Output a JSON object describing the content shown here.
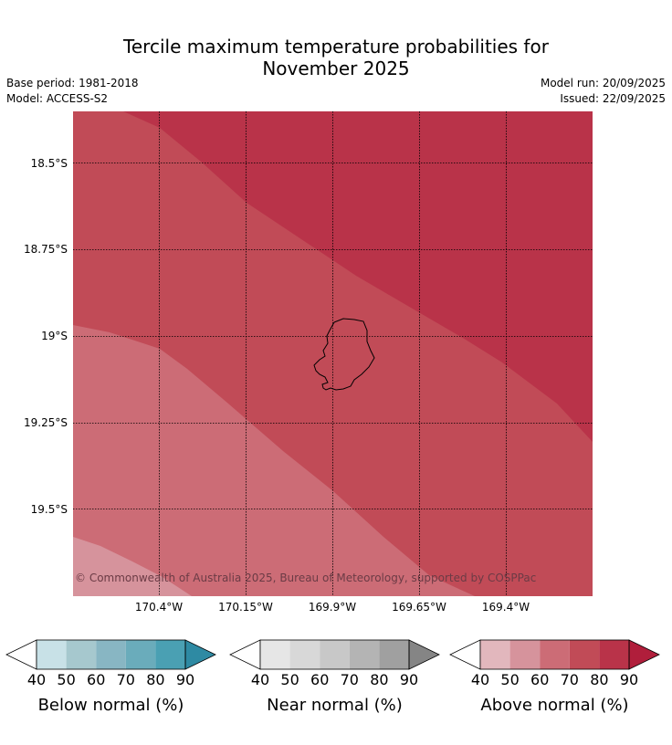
{
  "title": {
    "line1": "Tercile maximum temperature probabilities for",
    "line2": "November 2025"
  },
  "meta": {
    "base_period": "Base period: 1981-2018",
    "model": "Model: ACCESS-S2",
    "model_run": "Model run: 20/09/2025",
    "issued": "Issued: 22/09/2025"
  },
  "map": {
    "lat_labels": [
      "18.5°S",
      "18.75°S",
      "19°S",
      "19.25°S",
      "19.5°S"
    ],
    "lon_labels": [
      "170.4°W",
      "170.15°W",
      "169.9°W",
      "169.65°W",
      "169.4°W"
    ],
    "copyright": "© Commonwealth of Australia 2025, Bureau of Meteorology, supported by COSPPac",
    "fill_colors": {
      "above_50": "#d6939c",
      "above_60": "#cc6c76",
      "above_70": "#c14b57",
      "above_80": "#b93349"
    }
  },
  "colorbars": [
    {
      "label": "Below normal (%)",
      "ticks": [
        "40",
        "50",
        "60",
        "70",
        "80",
        "90"
      ],
      "colors": [
        "#c8e1e7",
        "#a6c8ce",
        "#88b6c3",
        "#6aacbb",
        "#4aa0b3",
        "#2e8aa3"
      ]
    },
    {
      "label": "Near normal (%)",
      "ticks": [
        "40",
        "50",
        "60",
        "70",
        "80",
        "90"
      ],
      "colors": [
        "#e6e6e6",
        "#d8d8d8",
        "#c8c8c8",
        "#b4b4b4",
        "#a0a0a0",
        "#858585"
      ]
    },
    {
      "label": "Above normal (%)",
      "ticks": [
        "40",
        "50",
        "60",
        "70",
        "80",
        "90"
      ],
      "colors": [
        "#e2b7bd",
        "#d6939c",
        "#cc6c76",
        "#c14b57",
        "#b93349",
        "#b01e3b"
      ]
    }
  ]
}
